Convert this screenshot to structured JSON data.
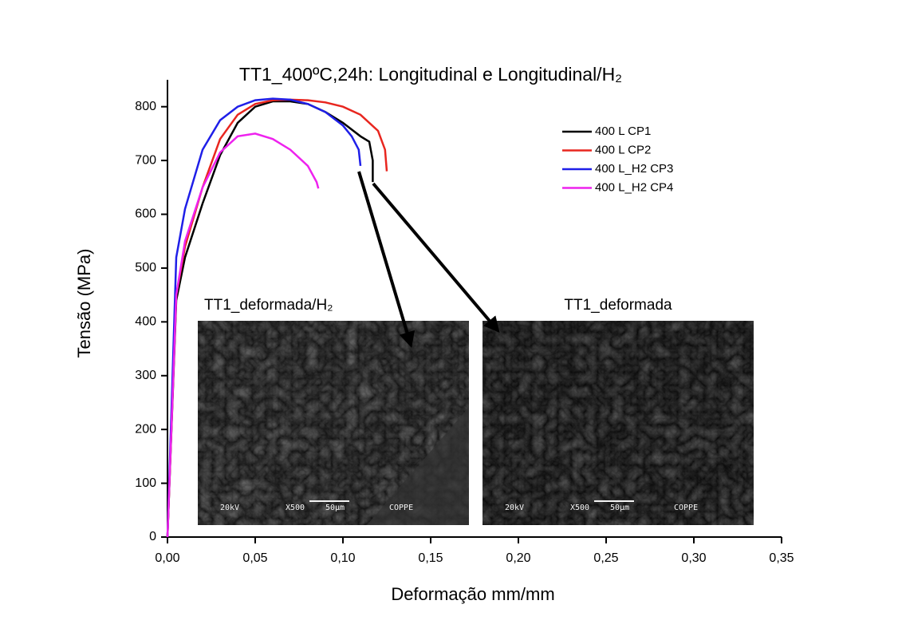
{
  "chart_data": {
    "type": "line",
    "title": "TT1_400ºC,24h: Longitudinal e Longitudinal/H₂",
    "x_label": "Deformação mm/mm",
    "y_label": "Tensão (MPa)",
    "xlim": [
      0,
      0.35
    ],
    "ylim": [
      0,
      850
    ],
    "xticks": [
      {
        "value": 0,
        "label": "0,00"
      },
      {
        "value": 0.05,
        "label": "0,05"
      },
      {
        "value": 0.1,
        "label": "0,10"
      },
      {
        "value": 0.15,
        "label": "0,15"
      },
      {
        "value": 0.2,
        "label": "0,20"
      },
      {
        "value": 0.25,
        "label": "0,25"
      },
      {
        "value": 0.3,
        "label": "0,30"
      },
      {
        "value": 0.35,
        "label": "0,35"
      }
    ],
    "yticks": [
      0,
      100,
      200,
      300,
      400,
      500,
      600,
      700,
      800
    ],
    "legend": "upper right",
    "series": [
      {
        "name": "400 L CP1",
        "color": "#000000",
        "x": [
          0,
          0.005,
          0.01,
          0.02,
          0.03,
          0.04,
          0.05,
          0.06,
          0.07,
          0.08,
          0.09,
          0.1,
          0.11,
          0.115,
          0.117,
          0.117
        ],
        "values": [
          0,
          440,
          520,
          620,
          710,
          770,
          800,
          810,
          810,
          805,
          790,
          770,
          745,
          735,
          700,
          660
        ]
      },
      {
        "name": "400 L CP2",
        "color": "#e8261f",
        "x": [
          0,
          0.005,
          0.01,
          0.02,
          0.03,
          0.04,
          0.05,
          0.06,
          0.07,
          0.08,
          0.09,
          0.1,
          0.11,
          0.12,
          0.124,
          0.125
        ],
        "values": [
          0,
          450,
          540,
          650,
          740,
          785,
          805,
          812,
          813,
          812,
          808,
          800,
          785,
          755,
          720,
          680
        ]
      },
      {
        "name": "400 L_H2 CP3",
        "color": "#1f1fe8",
        "x": [
          0,
          0.005,
          0.01,
          0.02,
          0.03,
          0.04,
          0.05,
          0.06,
          0.07,
          0.08,
          0.09,
          0.1,
          0.105,
          0.109,
          0.11
        ],
        "values": [
          0,
          520,
          610,
          720,
          775,
          800,
          812,
          815,
          813,
          805,
          790,
          765,
          745,
          720,
          690
        ]
      },
      {
        "name": "400 L_H2 CP4",
        "color": "#ee22ee",
        "x": [
          0,
          0.005,
          0.01,
          0.02,
          0.03,
          0.04,
          0.05,
          0.06,
          0.07,
          0.08,
          0.085,
          0.086
        ],
        "values": [
          0,
          450,
          550,
          650,
          715,
          745,
          750,
          740,
          720,
          690,
          660,
          648
        ]
      }
    ],
    "insets": [
      {
        "label": "TT1_deformada/H₂",
        "texts": [
          "20kV",
          "X500",
          "50μm",
          "COPPE"
        ]
      },
      {
        "label": "TT1_deformada",
        "texts": [
          "20kV",
          "X500",
          "50μm",
          "COPPE"
        ]
      }
    ]
  }
}
